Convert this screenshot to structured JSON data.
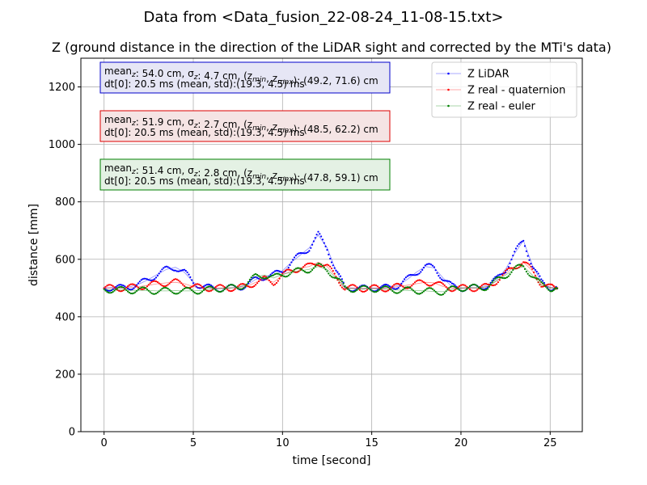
{
  "chart_data": {
    "type": "scatter",
    "suptitle": "Data from <Data_fusion_22-08-24_11-08-15.txt>",
    "title": "Z (ground distance in the direction of the LiDAR sight and corrected by the MTi's data)",
    "xlabel": "time [second]",
    "ylabel": "distance [mm]",
    "xlim": [
      -1.3,
      26.8
    ],
    "ylim": [
      0,
      1300
    ],
    "xticks": [
      0,
      5,
      10,
      15,
      20,
      25
    ],
    "yticks": [
      0,
      200,
      400,
      600,
      800,
      1000,
      1200
    ],
    "grid": true,
    "legend_position": "top-right",
    "series": [
      {
        "name": "Z LiDAR",
        "color": "#0000ff",
        "x": [
          0,
          0.5,
          1,
          1.5,
          2,
          2.5,
          3,
          3.5,
          4,
          4.5,
          5,
          5.5,
          6,
          6.5,
          7,
          7.5,
          8,
          8.5,
          9,
          9.5,
          10,
          10.5,
          11,
          11.5,
          12,
          12.5,
          13,
          13.5,
          14,
          14.5,
          15,
          15.5,
          16,
          16.5,
          17,
          17.5,
          18,
          18.5,
          19,
          19.5,
          20,
          20.5,
          21,
          21.5,
          22,
          22.5,
          23,
          23.5,
          24,
          24.5,
          25,
          25.4
        ],
        "values": [
          500,
          502,
          500,
          505,
          515,
          530,
          548,
          565,
          572,
          555,
          520,
          505,
          500,
          498,
          500,
          502,
          510,
          530,
          540,
          545,
          560,
          590,
          615,
          640,
          685,
          640,
          560,
          500,
          500,
          498,
          500,
          500,
          502,
          510,
          530,
          555,
          575,
          570,
          535,
          505,
          500,
          500,
          502,
          510,
          530,
          565,
          620,
          665,
          580,
          520,
          502,
          500
        ]
      },
      {
        "name": "Z real - quaternion",
        "color": "#ff0000",
        "x": [
          0,
          0.5,
          1,
          1.5,
          2,
          2.5,
          3,
          3.5,
          4,
          4.5,
          5,
          5.5,
          6,
          6.5,
          7,
          7.5,
          8,
          8.5,
          9,
          9.5,
          10,
          10.5,
          11,
          11.5,
          12,
          12.5,
          13,
          13.5,
          14,
          14.5,
          15,
          15.5,
          16,
          16.5,
          17,
          17.5,
          18,
          18.5,
          19,
          19.5,
          20,
          20.5,
          21,
          21.5,
          22,
          22.5,
          23,
          23.5,
          24,
          24.5,
          25,
          25.4
        ],
        "values": [
          500,
          500,
          500,
          502,
          505,
          510,
          515,
          518,
          520,
          515,
          505,
          500,
          500,
          500,
          500,
          502,
          505,
          520,
          530,
          520,
          545,
          560,
          570,
          575,
          590,
          575,
          540,
          500,
          500,
          498,
          500,
          498,
          500,
          505,
          510,
          515,
          520,
          518,
          505,
          500,
          500,
          500,
          500,
          505,
          525,
          550,
          575,
          590,
          560,
          515,
          502,
          500
        ]
      },
      {
        "name": "Z real - euler",
        "color": "#008000",
        "x": [
          0,
          0.5,
          1,
          1.5,
          2,
          2.5,
          3,
          3.5,
          4,
          4.5,
          5,
          5.5,
          6,
          6.5,
          7,
          7.5,
          8,
          8.5,
          9,
          9.5,
          10,
          10.5,
          11,
          11.5,
          12,
          12.5,
          13,
          13.5,
          14,
          14.5,
          15,
          15.5,
          16,
          16.5,
          17,
          17.5,
          18,
          18.5,
          19,
          19.5,
          20,
          20.5,
          21,
          21.5,
          22,
          22.5,
          23,
          23.5,
          24,
          24.5,
          25,
          25.4
        ],
        "values": [
          495,
          494,
          493,
          492,
          492,
          491,
          490,
          490,
          491,
          490,
          490,
          492,
          495,
          498,
          500,
          502,
          515,
          540,
          545,
          535,
          548,
          555,
          560,
          565,
          575,
          565,
          535,
          500,
          497,
          496,
          498,
          496,
          494,
          493,
          492,
          491,
          490,
          488,
          487,
          495,
          500,
          502,
          500,
          505,
          525,
          545,
          565,
          575,
          545,
          510,
          500,
          498
        ]
      }
    ],
    "annotations": [
      {
        "line1": "mean",
        "line1_sub": "z",
        "line1_rest": ": 54.0 cm, σ",
        "line1_sub2": "z",
        "line1_rest2": ": 4.7 cm, (z",
        "line1_sub3": "min",
        "line1_rest3": ", z",
        "line1_sub4": "max",
        "line1_rest4": "): (49.2, 71.6) cm",
        "line2": "dt[0]: 20.5 ms (mean, std):(19.3, 4.5) ms",
        "facecolor": "#e6e6f5",
        "edgecolor": "#0000cc"
      },
      {
        "line1": "mean",
        "line1_sub": "z",
        "line1_rest": ": 51.9 cm, σ",
        "line1_sub2": "z",
        "line1_rest2": ": 2.7 cm, (z",
        "line1_sub3": "min",
        "line1_rest3": ", z",
        "line1_sub4": "max",
        "line1_rest4": "): (48.5, 62.2) cm",
        "line2": "dt[0]: 20.5 ms (mean, std):(19.3, 4.5) ms",
        "facecolor": "#f5e4e4",
        "edgecolor": "#dd0000"
      },
      {
        "line1": "mean",
        "line1_sub": "z",
        "line1_rest": ": 51.4 cm, σ",
        "line1_sub2": "z",
        "line1_rest2": ": 2.8 cm, (z",
        "line1_sub3": "min",
        "line1_rest3": ", z",
        "line1_sub4": "max",
        "line1_rest4": "): (47.8, 59.1) cm",
        "line2": "dt[0]: 20.5 ms (mean, std):(19.3, 4.5) ms",
        "facecolor": "#e4f1e4",
        "edgecolor": "#008000"
      }
    ]
  }
}
